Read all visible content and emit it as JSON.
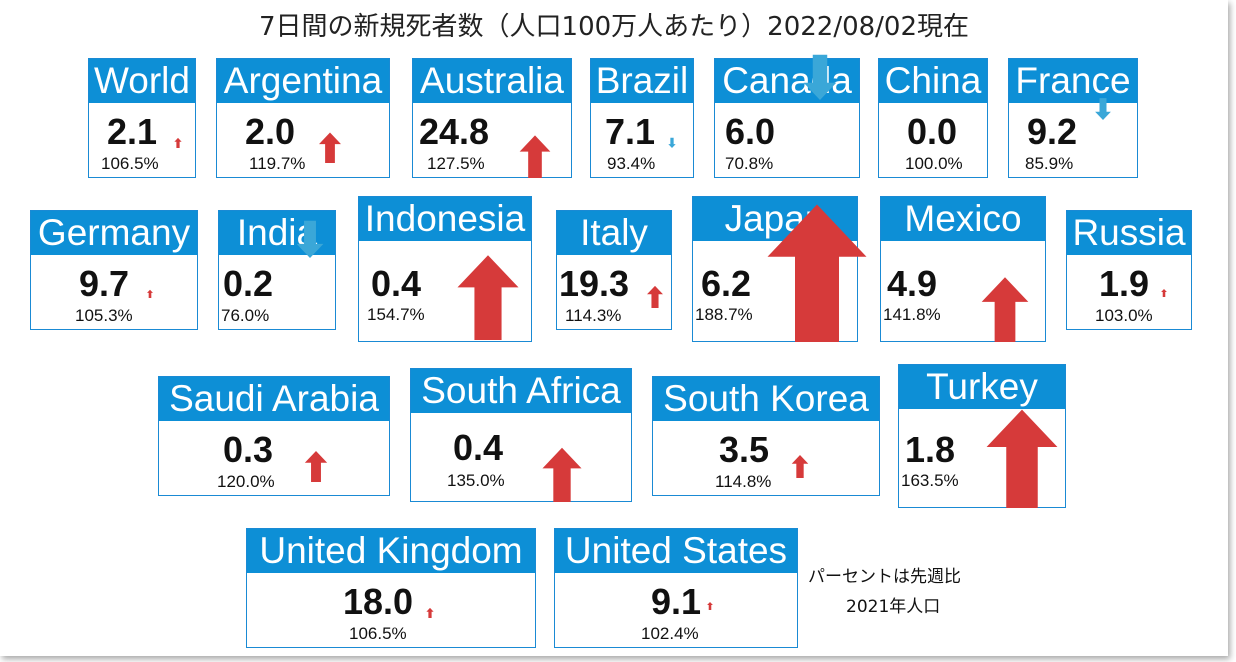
{
  "title": "7日間の新規死者数（人口100万人あたり）2022/08/02現在",
  "notes": [
    "パーセントは先週比",
    "2021年人口"
  ],
  "colors": {
    "header": "#0d8fd6",
    "up": "#d63a3a",
    "down": "#3aa7d8"
  },
  "chart_data": {
    "type": "table",
    "title": "7日間の新規死者数（人口100万人あたり）2022/08/02現在",
    "columns": [
      "country",
      "value",
      "week_over_week"
    ],
    "rows": [
      {
        "country": "World",
        "value": "2.1",
        "change": "106.5%",
        "pct": 106.5
      },
      {
        "country": "Argentina",
        "value": "2.0",
        "change": "119.7%",
        "pct": 119.7
      },
      {
        "country": "Australia",
        "value": "24.8",
        "change": "127.5%",
        "pct": 127.5
      },
      {
        "country": "Brazil",
        "value": "7.1",
        "change": "93.4%",
        "pct": 93.4
      },
      {
        "country": "Canada",
        "value": "6.0",
        "change": "70.8%",
        "pct": 70.8
      },
      {
        "country": "China",
        "value": "0.0",
        "change": "100.0%",
        "pct": 100.0
      },
      {
        "country": "France",
        "value": "9.2",
        "change": "85.9%",
        "pct": 85.9
      },
      {
        "country": "Germany",
        "value": "9.7",
        "change": "105.3%",
        "pct": 105.3
      },
      {
        "country": "India",
        "value": "0.2",
        "change": "76.0%",
        "pct": 76.0
      },
      {
        "country": "Indonesia",
        "value": "0.4",
        "change": "154.7%",
        "pct": 154.7
      },
      {
        "country": "Italy",
        "value": "19.3",
        "change": "114.3%",
        "pct": 114.3
      },
      {
        "country": "Japan",
        "value": "6.2",
        "change": "188.7%",
        "pct": 188.7
      },
      {
        "country": "Mexico",
        "value": "4.9",
        "change": "141.8%",
        "pct": 141.8
      },
      {
        "country": "Russia",
        "value": "1.9",
        "change": "103.0%",
        "pct": 103.0
      },
      {
        "country": "Saudi Arabia",
        "value": "0.3",
        "change": "120.0%",
        "pct": 120.0
      },
      {
        "country": "South Africa",
        "value": "0.4",
        "change": "135.0%",
        "pct": 135.0
      },
      {
        "country": "South Korea",
        "value": "3.5",
        "change": "114.8%",
        "pct": 114.8
      },
      {
        "country": "Turkey",
        "value": "1.8",
        "change": "163.5%",
        "pct": 163.5
      },
      {
        "country": "United Kingdom",
        "value": "18.0",
        "change": "106.5%",
        "pct": 106.5
      },
      {
        "country": "United States",
        "value": "9.1",
        "change": "102.4%",
        "pct": 102.4
      }
    ]
  }
}
